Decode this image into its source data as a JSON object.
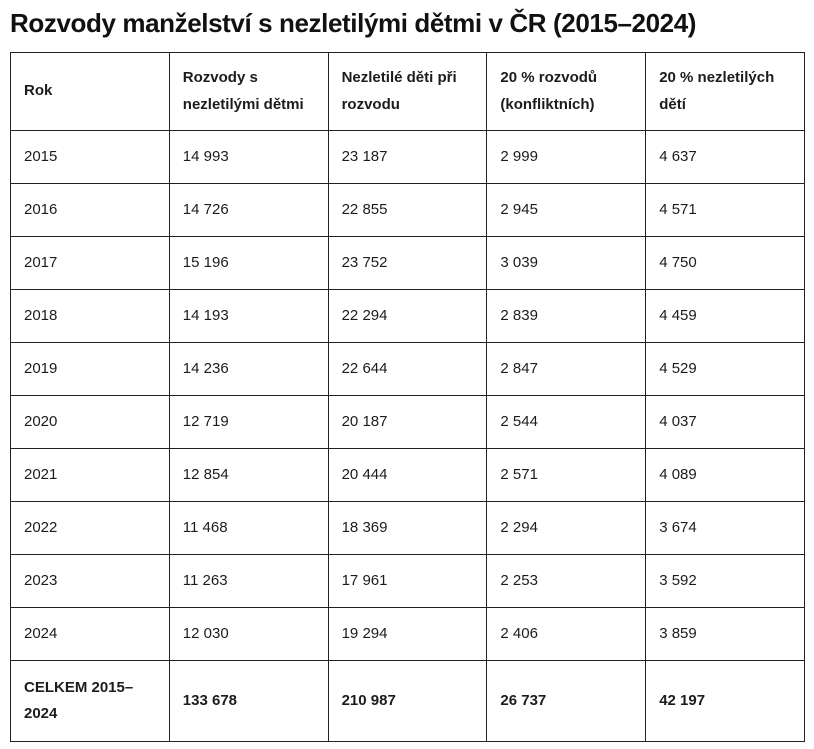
{
  "title": "Rozvody manželství s nezletilými dětmi v ČR (2015–2024)",
  "colors": {
    "background": "#ffffff",
    "text": "#1c1c1c",
    "border": "#222222"
  },
  "chart_data": {
    "type": "table",
    "title": "Rozvody manželství s nezletilými dětmi v ČR (2015–2024)",
    "columns": [
      "Rok",
      "Rozvody s nezletilými dětmi",
      "Nezletilé děti při rozvodu",
      "20 % rozvodů (konfliktních)",
      "20 % nezletilých dětí"
    ],
    "rows": [
      [
        "2015",
        "14 993",
        "23 187",
        "2 999",
        "4 637"
      ],
      [
        "2016",
        "14 726",
        "22 855",
        "2 945",
        "4 571"
      ],
      [
        "2017",
        "15 196",
        "23 752",
        "3 039",
        "4 750"
      ],
      [
        "2018",
        "14 193",
        "22 294",
        "2 839",
        "4 459"
      ],
      [
        "2019",
        "14 236",
        "22 644",
        "2 847",
        "4 529"
      ],
      [
        "2020",
        "12 719",
        "20 187",
        "2 544",
        "4 037"
      ],
      [
        "2021",
        "12 854",
        "20 444",
        "2 571",
        "4 089"
      ],
      [
        "2022",
        "11 468",
        "18 369",
        "2 294",
        "3 674"
      ],
      [
        "2023",
        "11 263",
        "17 961",
        "2 253",
        "3 592"
      ],
      [
        "2024",
        "12 030",
        "19 294",
        "2 406",
        "3 859"
      ]
    ],
    "total_row": [
      "CELKEM 2015–2024",
      "133 678",
      "210 987",
      "26 737",
      "42 197"
    ]
  }
}
